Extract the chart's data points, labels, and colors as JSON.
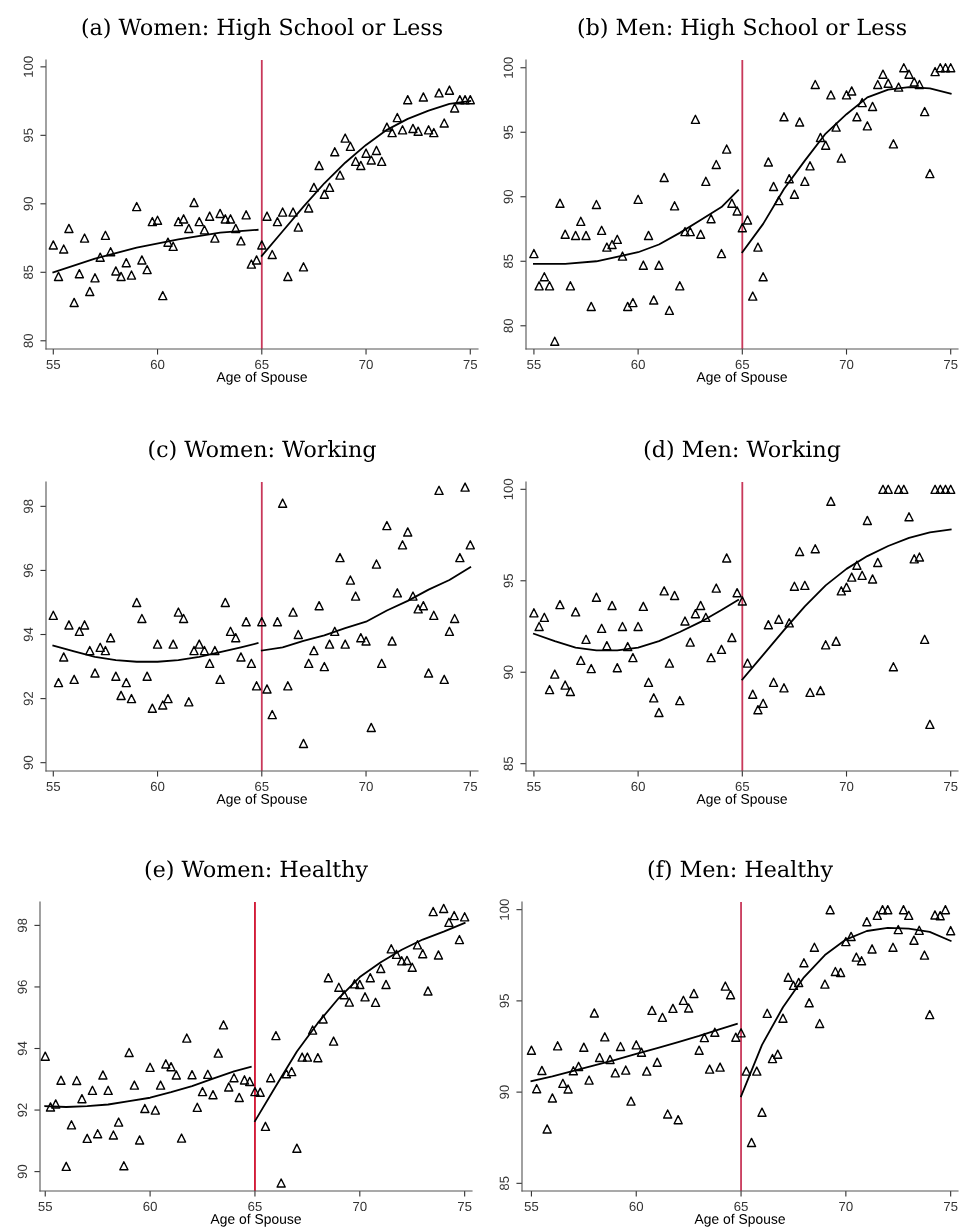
{
  "chart_data": [
    {
      "type": "scatter",
      "title": "(a) Women: High School or Less",
      "xlabel": "Age of Spouse",
      "xlim": [
        54.65,
        75.37
      ],
      "xticks": [
        55,
        60,
        65,
        70,
        75
      ],
      "ylim": [
        79.4,
        100.5
      ],
      "yticks": [
        80,
        85,
        90,
        95,
        100
      ],
      "ref_lines": [
        {
          "axis": "x",
          "value": 65,
          "color": "#c8385a"
        }
      ],
      "x": [
        55,
        55.25,
        55.5,
        55.75,
        56,
        56.25,
        56.5,
        56.75,
        57,
        57.25,
        57.5,
        57.75,
        58,
        58.25,
        58.5,
        58.75,
        59,
        59.25,
        59.5,
        59.75,
        60,
        60.25,
        60.5,
        60.75,
        61,
        61.25,
        61.5,
        61.75,
        62,
        62.25,
        62.5,
        62.75,
        63,
        63.25,
        63.5,
        63.75,
        64,
        64.25,
        64.5,
        64.75,
        65,
        65.25,
        65.5,
        65.75,
        66,
        66.25,
        66.5,
        66.75,
        67,
        67.25,
        67.5,
        67.75,
        68,
        68.25,
        68.5,
        68.75,
        69,
        69.25,
        69.5,
        69.75,
        70,
        70.25,
        70.5,
        70.75,
        71,
        71.25,
        71.5,
        71.75,
        72,
        72.25,
        72.5,
        72.75,
        73,
        73.25,
        73.5,
        73.75,
        74,
        74.25,
        74.5,
        74.75,
        75
      ],
      "series": [
        {
          "color": "#000000",
          "marker": "triangle",
          "values": [
            87.0,
            84.7,
            86.7,
            88.2,
            82.8,
            84.9,
            87.5,
            83.6,
            84.6,
            86.1,
            87.7,
            86.5,
            85.1,
            84.7,
            85.7,
            84.8,
            89.8,
            85.9,
            85.2,
            88.7,
            88.8,
            83.3,
            87.2,
            86.9,
            88.7,
            88.9,
            88.2,
            90.1,
            88.7,
            88.1,
            89.1,
            87.5,
            89.3,
            88.9,
            88.9,
            88.2,
            87.3,
            89.2,
            85.6,
            85.9,
            87.0,
            89.1,
            86.3,
            88.7,
            89.4,
            84.7,
            89.4,
            88.3,
            85.4,
            89.7,
            91.2,
            92.8,
            90.7,
            91.2,
            93.8,
            92.1,
            94.8,
            94.2,
            93.1,
            92.8,
            93.7,
            93.2,
            93.9,
            93.1,
            95.6,
            95.2,
            96.3,
            95.4,
            97.6,
            95.5,
            95.3,
            97.8,
            95.4,
            95.2,
            98.1,
            95.9,
            98.3,
            97.0,
            97.6,
            97.6,
            97.6
          ]
        },
        {
          "type": "line",
          "color": "#000000",
          "x": [
            55,
            57,
            59,
            61,
            63,
            64.8
          ],
          "values": [
            85.0,
            86.0,
            86.8,
            87.4,
            87.9,
            88.1
          ]
        },
        {
          "type": "line",
          "color": "#000000",
          "x": [
            65,
            66,
            67,
            68,
            69,
            70,
            71,
            72,
            73,
            74,
            75
          ],
          "values": [
            86.2,
            88.0,
            89.8,
            91.5,
            93.0,
            94.3,
            95.4,
            96.2,
            96.8,
            97.3,
            97.5
          ]
        }
      ]
    },
    {
      "type": "scatter",
      "title": "(b) Men: High School or Less",
      "xlabel": "Age of Spouse",
      "xlim": [
        54.62,
        75.35
      ],
      "xticks": [
        55,
        60,
        65,
        70,
        75
      ],
      "ylim": [
        78.2,
        100.6
      ],
      "yticks": [
        80,
        85,
        90,
        95,
        100
      ],
      "ref_lines": [
        {
          "axis": "x",
          "value": 65,
          "color": "#c8385a"
        }
      ],
      "x": [
        55,
        55.25,
        55.5,
        55.75,
        56,
        56.25,
        56.5,
        56.75,
        57,
        57.25,
        57.5,
        57.75,
        58,
        58.25,
        58.5,
        58.75,
        59,
        59.25,
        59.5,
        59.75,
        60,
        60.25,
        60.5,
        60.75,
        61,
        61.25,
        61.5,
        61.75,
        62,
        62.25,
        62.5,
        62.75,
        63,
        63.25,
        63.5,
        63.75,
        64,
        64.25,
        64.5,
        64.75,
        65,
        65.25,
        65.5,
        65.75,
        66,
        66.25,
        66.5,
        66.75,
        67,
        67.25,
        67.5,
        67.75,
        68,
        68.25,
        68.5,
        68.75,
        69,
        69.25,
        69.5,
        69.75,
        70,
        70.25,
        70.5,
        70.75,
        71,
        71.25,
        71.5,
        71.75,
        72,
        72.25,
        72.5,
        72.75,
        73,
        73.25,
        73.5,
        73.75,
        74,
        74.25,
        74.5,
        74.75,
        75
      ],
      "series": [
        {
          "color": "#000000",
          "marker": "triangle",
          "values": [
            85.6,
            83.1,
            83.8,
            83.1,
            78.8,
            89.5,
            87.1,
            83.1,
            87.0,
            88.1,
            87.0,
            81.5,
            89.4,
            87.4,
            86.1,
            86.3,
            86.7,
            85.4,
            81.5,
            81.8,
            89.8,
            84.7,
            87.0,
            82.0,
            84.7,
            91.5,
            81.2,
            89.3,
            83.1,
            87.3,
            87.3,
            96.0,
            87.1,
            91.2,
            88.3,
            92.5,
            85.6,
            93.7,
            89.5,
            88.9,
            87.6,
            88.2,
            82.3,
            86.1,
            83.8,
            92.7,
            90.8,
            89.7,
            96.2,
            91.4,
            90.2,
            95.8,
            91.2,
            92.4,
            98.7,
            94.6,
            94.0,
            97.9,
            95.4,
            93.0,
            97.9,
            98.2,
            96.2,
            97.3,
            95.5,
            97.0,
            98.7,
            99.5,
            98.8,
            94.1,
            98.5,
            100.0,
            99.5,
            98.9,
            98.7,
            96.6,
            91.8,
            99.7,
            100.0,
            100.0,
            100.0
          ]
        },
        {
          "type": "line",
          "color": "#000000",
          "x": [
            55,
            56.5,
            58,
            60,
            61,
            62,
            63,
            64,
            64.8
          ],
          "values": [
            84.8,
            84.8,
            85.0,
            85.7,
            86.3,
            87.2,
            88.2,
            89.2,
            90.5
          ]
        },
        {
          "type": "line",
          "color": "#000000",
          "x": [
            65,
            66,
            67,
            68,
            69,
            70,
            71,
            72,
            73,
            74,
            75
          ],
          "values": [
            85.7,
            87.9,
            90.6,
            92.8,
            94.9,
            96.4,
            97.7,
            98.3,
            98.5,
            98.4,
            98.0
          ]
        }
      ]
    },
    {
      "type": "scatter",
      "title": "(c) Women: Working",
      "xlabel": "Age of Spouse",
      "xlim": [
        54.65,
        75.37
      ],
      "xticks": [
        55,
        60,
        65,
        70,
        75
      ],
      "ylim": [
        89.74,
        98.76
      ],
      "yticks": [
        90,
        92,
        94,
        96,
        98
      ],
      "ref_lines": [
        {
          "axis": "x",
          "value": 65,
          "color": "#c8385a"
        }
      ],
      "x": [
        55,
        55.25,
        55.5,
        55.75,
        56,
        56.25,
        56.5,
        56.75,
        57,
        57.25,
        57.5,
        57.75,
        58,
        58.25,
        58.5,
        58.75,
        59,
        59.25,
        59.5,
        59.75,
        60,
        60.25,
        60.5,
        60.75,
        61,
        61.25,
        61.5,
        61.75,
        62,
        62.25,
        62.5,
        62.75,
        63,
        63.25,
        63.5,
        63.75,
        64,
        64.25,
        64.5,
        64.75,
        65,
        65.25,
        65.5,
        65.75,
        66,
        66.25,
        66.5,
        66.75,
        67,
        67.25,
        67.5,
        67.75,
        68,
        68.25,
        68.5,
        68.75,
        69,
        69.25,
        69.5,
        69.75,
        70,
        70.25,
        70.5,
        70.75,
        71,
        71.25,
        71.5,
        71.75,
        72,
        72.25,
        72.5,
        72.75,
        73,
        73.25,
        73.5,
        73.75,
        74,
        74.25,
        74.5,
        74.75,
        75
      ],
      "series": [
        {
          "color": "#000000",
          "marker": "triangle",
          "values": [
            94.6,
            92.5,
            93.3,
            94.3,
            92.6,
            94.1,
            94.3,
            93.5,
            92.8,
            93.6,
            93.5,
            93.9,
            92.7,
            92.1,
            92.5,
            92.0,
            95.0,
            94.5,
            92.7,
            91.7,
            93.7,
            91.8,
            92.0,
            93.7,
            94.7,
            94.5,
            91.9,
            93.5,
            93.7,
            93.5,
            93.1,
            93.5,
            92.6,
            95.0,
            94.1,
            93.9,
            93.3,
            94.4,
            93.1,
            92.4,
            94.4,
            92.3,
            91.5,
            94.4,
            98.1,
            92.4,
            94.7,
            94.0,
            90.6,
            93.1,
            93.5,
            94.9,
            93.0,
            93.7,
            94.1,
            96.4,
            93.7,
            95.7,
            95.2,
            93.9,
            93.8,
            91.1,
            96.2,
            93.1,
            97.4,
            93.8,
            95.3,
            96.8,
            97.2,
            95.2,
            94.8,
            94.9,
            92.8,
            94.6,
            98.5,
            92.6,
            94.1,
            94.5,
            96.4,
            98.6,
            96.8
          ]
        },
        {
          "type": "line",
          "color": "#000000",
          "x": [
            55,
            56,
            57,
            58,
            59,
            60,
            61,
            62,
            63,
            64,
            64.8
          ],
          "values": [
            93.65,
            93.47,
            93.3,
            93.2,
            93.15,
            93.15,
            93.2,
            93.3,
            93.45,
            93.6,
            93.73
          ]
        },
        {
          "type": "line",
          "color": "#000000",
          "x": [
            65,
            66,
            67,
            68,
            69,
            70,
            71,
            72,
            73,
            74,
            75
          ],
          "values": [
            93.5,
            93.6,
            93.8,
            93.97,
            94.2,
            94.4,
            94.75,
            95.05,
            95.4,
            95.7,
            96.1
          ]
        }
      ]
    },
    {
      "type": "scatter",
      "title": "(d) Men: Working",
      "xlabel": "Age of Spouse",
      "xlim": [
        54.62,
        75.35
      ],
      "xticks": [
        55,
        60,
        65,
        70,
        75
      ],
      "ylim": [
        84.6,
        100.4
      ],
      "yticks": [
        85,
        90,
        95,
        100
      ],
      "ref_lines": [
        {
          "axis": "x",
          "value": 65,
          "color": "#c8385a"
        }
      ],
      "x": [
        55,
        55.25,
        55.5,
        55.75,
        56,
        56.25,
        56.5,
        56.75,
        57,
        57.25,
        57.5,
        57.75,
        58,
        58.25,
        58.5,
        58.75,
        59,
        59.25,
        59.5,
        59.75,
        60,
        60.25,
        60.5,
        60.75,
        61,
        61.25,
        61.5,
        61.75,
        62,
        62.25,
        62.5,
        62.75,
        63,
        63.25,
        63.5,
        63.75,
        64,
        64.25,
        64.5,
        64.75,
        65,
        65.25,
        65.5,
        65.75,
        66,
        66.25,
        66.5,
        66.75,
        67,
        67.25,
        67.5,
        67.75,
        68,
        68.25,
        68.5,
        68.75,
        69,
        69.25,
        69.5,
        69.75,
        70,
        70.25,
        70.5,
        70.75,
        71,
        71.25,
        71.5,
        71.75,
        72,
        72.25,
        72.5,
        72.75,
        73,
        73.25,
        73.5,
        73.75,
        74,
        74.25,
        74.5,
        74.75,
        75
      ],
      "series": [
        {
          "color": "#000000",
          "marker": "triangle",
          "values": [
            93.25,
            92.5,
            93.0,
            89.05,
            89.9,
            93.7,
            89.3,
            88.95,
            93.3,
            90.65,
            91.8,
            90.2,
            94.1,
            92.4,
            91.45,
            93.65,
            90.25,
            92.5,
            91.4,
            90.8,
            92.5,
            93.6,
            89.45,
            88.6,
            87.8,
            94.45,
            90.5,
            94.2,
            88.45,
            92.8,
            91.65,
            93.2,
            93.65,
            93.0,
            90.8,
            94.6,
            91.25,
            96.25,
            91.9,
            94.35,
            93.9,
            90.5,
            88.8,
            87.95,
            88.3,
            92.6,
            89.45,
            92.9,
            89.15,
            92.7,
            94.7,
            96.6,
            94.75,
            88.9,
            96.75,
            89.0,
            91.5,
            99.35,
            91.7,
            94.45,
            94.65,
            95.2,
            95.85,
            95.3,
            98.3,
            95.1,
            96.0,
            100.0,
            100.0,
            90.3,
            100.0,
            100.0,
            98.5,
            96.2,
            96.3,
            91.8,
            87.15,
            100.0,
            100.0,
            100.0,
            100.0
          ]
        },
        {
          "type": "line",
          "color": "#000000",
          "x": [
            55,
            56,
            57,
            58,
            59,
            60,
            61,
            62,
            63,
            64,
            64.8
          ],
          "values": [
            92.1,
            91.7,
            91.35,
            91.2,
            91.2,
            91.35,
            91.7,
            92.2,
            92.75,
            93.4,
            93.95
          ]
        },
        {
          "type": "line",
          "color": "#000000",
          "x": [
            65,
            66,
            67,
            68,
            69,
            70,
            71,
            72,
            73,
            74,
            75
          ],
          "values": [
            89.6,
            90.95,
            92.3,
            93.6,
            94.75,
            95.65,
            96.35,
            96.9,
            97.35,
            97.65,
            97.8
          ]
        }
      ]
    },
    {
      "type": "scatter",
      "title": "(e) Women: Healthy",
      "xlabel": "Age of Spouse",
      "xlim": [
        54.75,
        75.35
      ],
      "xticks": [
        55,
        60,
        65,
        70,
        75
      ],
      "ylim": [
        89.37,
        98.76
      ],
      "yticks": [
        90,
        92,
        94,
        96,
        98
      ],
      "ref_lines": [
        {
          "axis": "x",
          "value": 65,
          "color": "#d0102e"
        }
      ],
      "x": [
        55,
        55.25,
        55.5,
        55.75,
        56,
        56.25,
        56.5,
        56.75,
        57,
        57.25,
        57.5,
        57.75,
        58,
        58.25,
        58.5,
        58.75,
        59,
        59.25,
        59.5,
        59.75,
        60,
        60.25,
        60.5,
        60.75,
        61,
        61.25,
        61.5,
        61.75,
        62,
        62.25,
        62.5,
        62.75,
        63,
        63.25,
        63.5,
        63.75,
        64,
        64.25,
        64.5,
        64.75,
        65,
        65.25,
        65.5,
        65.75,
        66,
        66.25,
        66.5,
        66.75,
        67,
        67.25,
        67.5,
        67.75,
        68,
        68.25,
        68.5,
        68.75,
        69,
        69.25,
        69.5,
        69.75,
        70,
        70.25,
        70.5,
        70.75,
        71,
        71.25,
        71.5,
        71.75,
        72,
        72.25,
        72.5,
        72.75,
        73,
        73.25,
        73.5,
        73.75,
        74,
        74.25,
        74.5,
        74.75,
        75
      ],
      "series": [
        {
          "color": "#000000",
          "marker": "triangle",
          "values": [
            93.75,
            92.1,
            92.2,
            92.97,
            90.17,
            91.52,
            92.96,
            92.37,
            91.08,
            92.64,
            91.23,
            93.14,
            92.64,
            91.19,
            91.61,
            90.19,
            93.87,
            92.81,
            91.03,
            92.05,
            93.39,
            92.0,
            92.81,
            93.5,
            93.41,
            93.14,
            91.09,
            94.34,
            93.15,
            92.09,
            92.6,
            93.16,
            92.5,
            93.85,
            94.77,
            92.75,
            93.05,
            92.41,
            92.98,
            92.93,
            92.6,
            92.58,
            91.47,
            93.05,
            94.42,
            89.63,
            93.18,
            93.25,
            90.76,
            93.72,
            93.72,
            94.6,
            93.7,
            94.96,
            96.3,
            94.24,
            95.99,
            95.75,
            95.51,
            96.1,
            96.08,
            95.68,
            96.3,
            95.5,
            96.6,
            96.08,
            97.24,
            97.06,
            96.85,
            96.86,
            96.64,
            97.37,
            97.08,
            95.87,
            98.45,
            97.04,
            98.55,
            98.1,
            98.32,
            97.54,
            98.28
          ]
        },
        {
          "type": "line",
          "color": "#000000",
          "x": [
            55,
            56,
            57,
            58,
            59,
            60,
            61,
            62,
            63,
            64,
            64.8
          ],
          "values": [
            92.13,
            92.1,
            92.13,
            92.18,
            92.29,
            92.4,
            92.58,
            92.78,
            93.02,
            93.26,
            93.4
          ]
        },
        {
          "type": "line",
          "color": "#000000",
          "x": [
            65,
            66,
            67,
            68,
            69,
            70,
            71,
            72,
            73,
            74,
            75
          ],
          "values": [
            91.64,
            92.78,
            93.9,
            94.83,
            95.64,
            96.32,
            96.8,
            97.21,
            97.54,
            97.8,
            98.08
          ]
        }
      ]
    },
    {
      "type": "scatter",
      "title": "(f) Men: Healthy",
      "xlabel": "Age of Spouse",
      "xlim": [
        54.55,
        75.35
      ],
      "xticks": [
        55,
        60,
        65,
        70,
        75
      ],
      "ylim": [
        84.58,
        100.42
      ],
      "yticks": [
        85,
        90,
        95,
        100
      ],
      "ref_lines": [
        {
          "axis": "x",
          "value": 65,
          "color": "#c8385a"
        }
      ],
      "x": [
        55,
        55.25,
        55.5,
        55.75,
        56,
        56.25,
        56.5,
        56.75,
        57,
        57.25,
        57.5,
        57.75,
        58,
        58.25,
        58.5,
        58.75,
        59,
        59.25,
        59.5,
        59.75,
        60,
        60.25,
        60.5,
        60.75,
        61,
        61.25,
        61.5,
        61.75,
        62,
        62.25,
        62.5,
        62.75,
        63,
        63.25,
        63.5,
        63.75,
        64,
        64.25,
        64.5,
        64.75,
        65,
        65.25,
        65.5,
        65.75,
        66,
        66.25,
        66.5,
        66.75,
        67,
        67.25,
        67.5,
        67.75,
        68,
        68.25,
        68.5,
        68.75,
        69,
        69.25,
        69.5,
        69.75,
        70,
        70.25,
        70.5,
        70.75,
        71,
        71.25,
        71.5,
        71.75,
        72,
        72.25,
        72.5,
        72.75,
        73,
        73.25,
        73.5,
        73.75,
        74,
        74.25,
        74.5,
        74.75,
        75
      ],
      "series": [
        {
          "color": "#000000",
          "marker": "triangle",
          "values": [
            92.3,
            90.19,
            91.19,
            87.98,
            89.68,
            92.54,
            90.48,
            90.17,
            91.17,
            91.41,
            92.46,
            90.66,
            94.34,
            91.9,
            93.03,
            91.79,
            91.06,
            92.5,
            91.21,
            89.51,
            92.59,
            92.19,
            91.15,
            94.48,
            91.64,
            94.1,
            88.8,
            94.59,
            88.49,
            95.03,
            94.61,
            95.41,
            92.3,
            92.99,
            91.26,
            93.28,
            91.37,
            95.81,
            95.34,
            93.01,
            93.25,
            91.15,
            87.24,
            91.15,
            88.9,
            94.32,
            91.84,
            92.08,
            94.05,
            96.3,
            95.85,
            96.01,
            97.09,
            94.9,
            97.94,
            93.76,
            95.92,
            100.0,
            96.61,
            96.56,
            98.25,
            98.53,
            97.4,
            97.2,
            99.34,
            97.85,
            99.69,
            100.0,
            100.0,
            97.94,
            98.91,
            100.0,
            99.69,
            98.33,
            98.87,
            97.51,
            94.25,
            99.71,
            99.67,
            100.0,
            98.85
          ]
        },
        {
          "type": "line",
          "color": "#000000",
          "x": [
            55,
            56,
            57,
            58,
            59,
            60,
            61,
            62,
            63,
            64,
            64.8
          ],
          "values": [
            90.6,
            90.86,
            91.17,
            91.46,
            91.77,
            92.1,
            92.41,
            92.74,
            93.08,
            93.45,
            93.74
          ]
        },
        {
          "type": "line",
          "color": "#000000",
          "x": [
            65,
            66,
            67,
            68,
            69,
            70,
            71,
            72,
            73,
            74,
            75
          ],
          "values": [
            89.77,
            92.59,
            94.65,
            96.29,
            97.51,
            98.36,
            98.83,
            99.0,
            98.96,
            98.78,
            98.29
          ]
        }
      ]
    }
  ]
}
